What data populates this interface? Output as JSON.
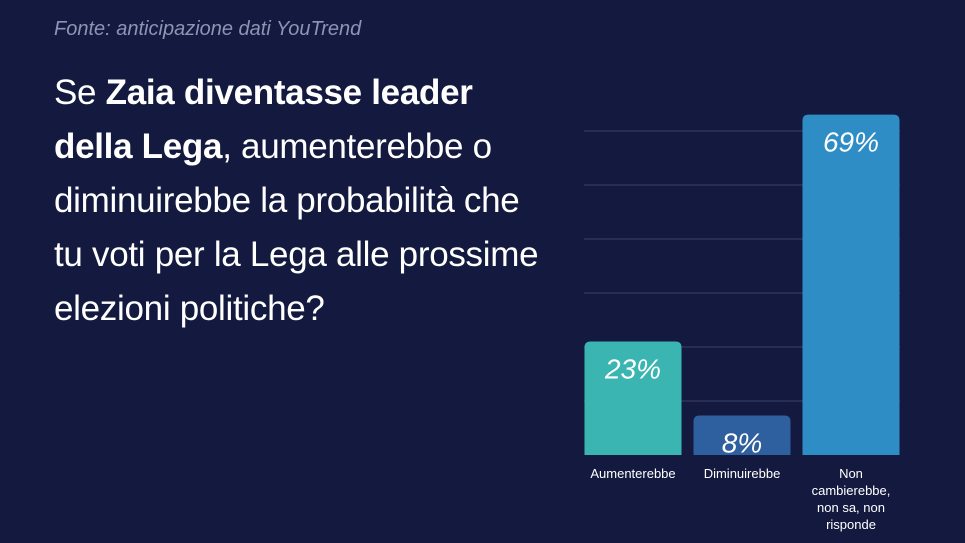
{
  "source": "Fonte: anticipazione dati YouTrend",
  "question": {
    "parts": [
      {
        "text": "Se ",
        "bold": false
      },
      {
        "text": "Zaia diventasse leader della Lega",
        "bold": true
      },
      {
        "text": ", aumenterebbe o diminuirebbe la probabilità che tu voti per la Lega alle prossime elezioni politiche?",
        "bold": false
      }
    ]
  },
  "chart_data": {
    "type": "bar",
    "title": "",
    "xlabel": "",
    "ylabel": "",
    "ylim": [
      0,
      75
    ],
    "grid": true,
    "categories": [
      "Aumenterebbe",
      "Diminuirebbe",
      "Non cambierebbe, non sa, non risponde"
    ],
    "category_lines": [
      [
        "Aumenterebbe"
      ],
      [
        "Diminuirebbe"
      ],
      [
        "Non",
        "cambierebbe,",
        "non sa, non",
        "risponde"
      ]
    ],
    "values": [
      23,
      8,
      69
    ],
    "value_labels": [
      "23%",
      "8%",
      "69%"
    ],
    "colors": [
      "#3bb5b2",
      "#2e5f9e",
      "#2f8dc6"
    ]
  }
}
